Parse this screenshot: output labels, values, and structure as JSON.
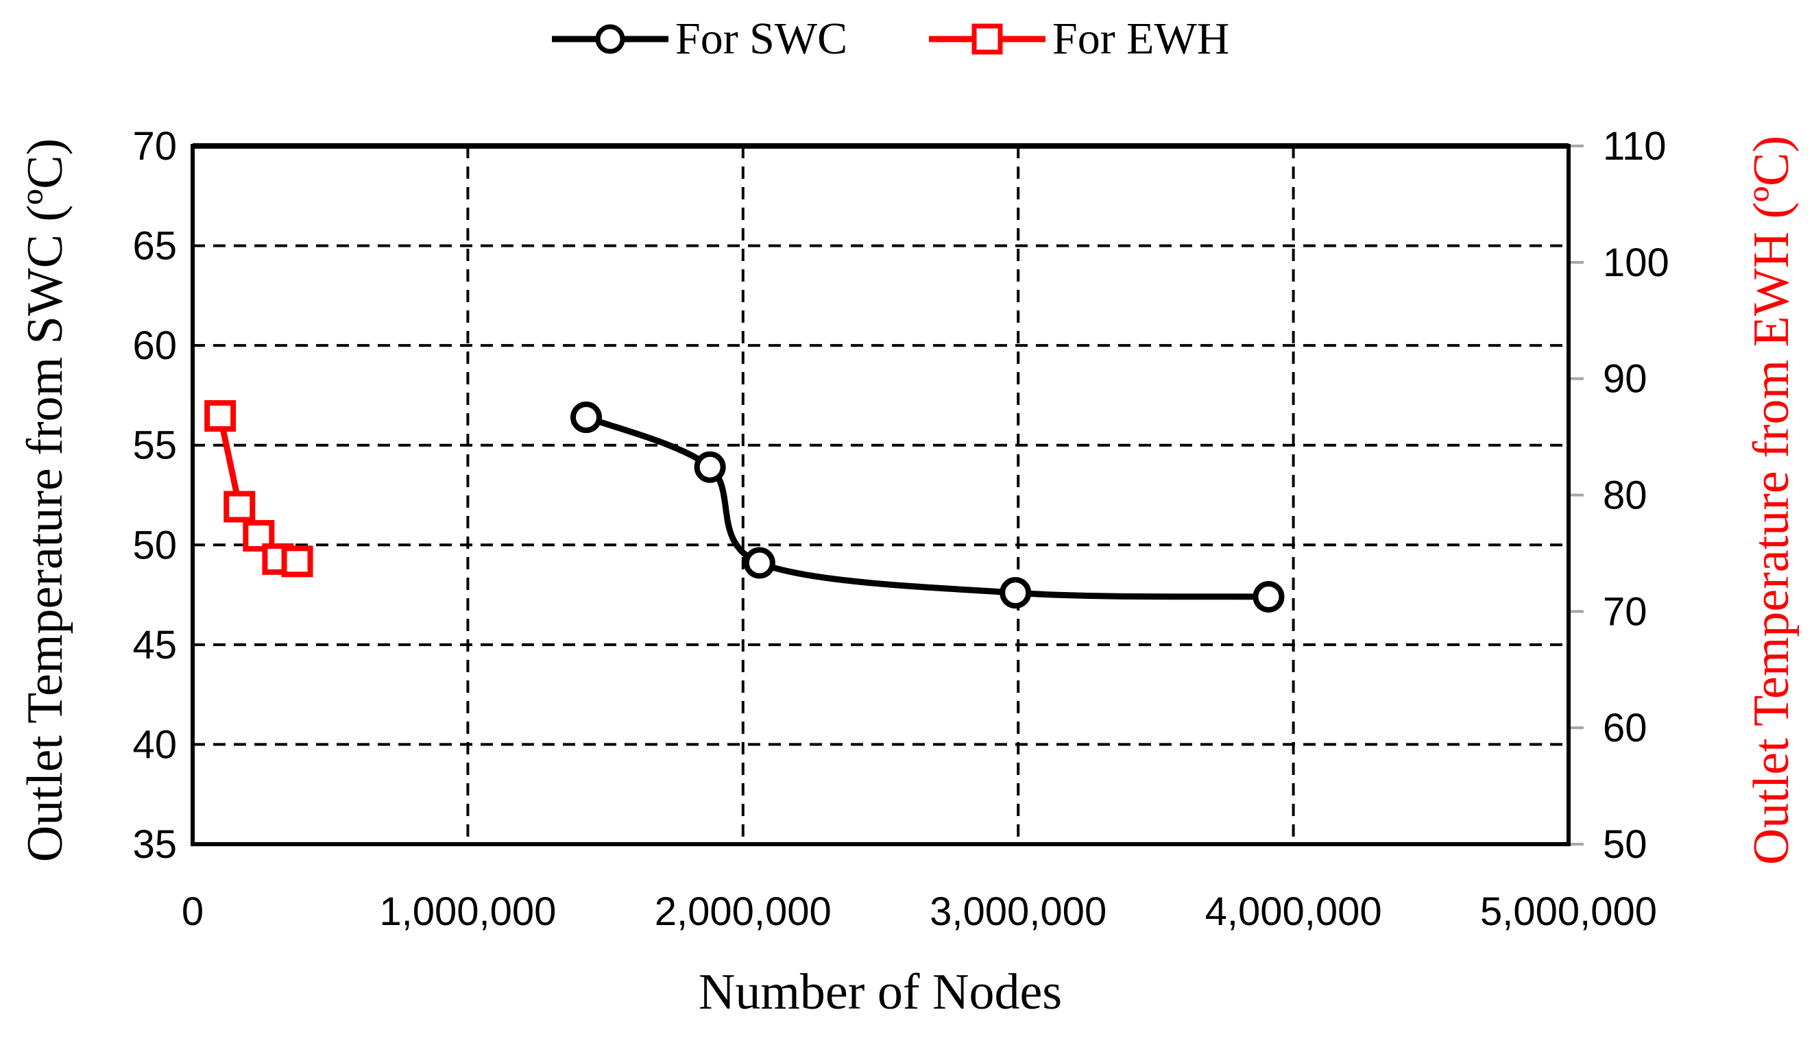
{
  "chart_data": {
    "type": "line",
    "legend_position": "top-center",
    "grid": true,
    "x": {
      "label": "Number of Nodes",
      "lim": [
        0,
        5000000
      ],
      "ticks": [
        0,
        1000000,
        2000000,
        3000000,
        4000000,
        5000000
      ],
      "tick_labels": [
        "0",
        "1,000,000",
        "2,000,000",
        "3,000,000",
        "4,000,000",
        "5,000,000"
      ]
    },
    "y_left": {
      "label": "Outlet Temperature from SWC (ºC)",
      "color": "#000000",
      "lim": [
        35,
        70
      ],
      "ticks": [
        35,
        40,
        45,
        50,
        55,
        60,
        65,
        70
      ],
      "tick_labels": [
        "35",
        "40",
        "45",
        "50",
        "55",
        "60",
        "65",
        "70"
      ]
    },
    "y_right": {
      "label": "Outlet Temperature from EWH (ºC)",
      "color": "#ff0000",
      "lim": [
        50,
        110
      ],
      "ticks": [
        50,
        60,
        70,
        80,
        90,
        100,
        110
      ],
      "tick_labels": [
        "50",
        "60",
        "70",
        "80",
        "90",
        "100",
        "110"
      ]
    },
    "series": [
      {
        "name": "For SWC",
        "axis": "left",
        "color": "#000000",
        "marker": "circle",
        "x": [
          1430000,
          1880000,
          2060000,
          2990000,
          3910000
        ],
        "y": [
          56.4,
          53.9,
          49.1,
          47.6,
          47.4
        ]
      },
      {
        "name": "For EWH",
        "axis": "right",
        "color": "#ff0000",
        "marker": "square",
        "x": [
          100000,
          170000,
          240000,
          310000,
          380000
        ],
        "y": [
          86.8,
          79.0,
          76.5,
          74.5,
          74.3
        ]
      }
    ]
  }
}
